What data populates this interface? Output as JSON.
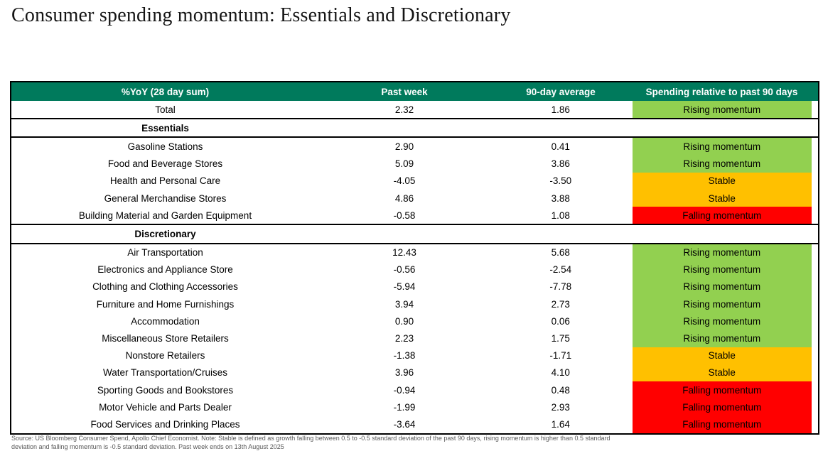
{
  "title": "Consumer spending momentum: Essentials and Discretionary",
  "colors": {
    "header_bg": "#007A5C",
    "rising": "#92D050",
    "stable": "#FFC000",
    "falling": "#FF0000"
  },
  "chart_data": {
    "type": "table",
    "title": "Consumer spending momentum: Essentials and Discretionary",
    "columns": [
      "%YoY (28 day sum)",
      "Past week",
      "90-day average",
      "Spending relative to past 90 days"
    ],
    "rows": [
      {
        "type": "data",
        "label": "Total",
        "past_week": "2.32",
        "avg_90": "1.86",
        "status": "Rising momentum",
        "momentum": "rising",
        "divider_below": true
      },
      {
        "type": "section",
        "label": "Essentials"
      },
      {
        "type": "data",
        "label": "Gasoline Stations",
        "past_week": "2.90",
        "avg_90": "0.41",
        "status": "Rising momentum",
        "momentum": "rising"
      },
      {
        "type": "data",
        "label": "Food and Beverage Stores",
        "past_week": "5.09",
        "avg_90": "3.86",
        "status": "Rising momentum",
        "momentum": "rising"
      },
      {
        "type": "data",
        "label": "Health and Personal Care",
        "past_week": "-4.05",
        "avg_90": "-3.50",
        "status": "Stable",
        "momentum": "stable"
      },
      {
        "type": "data",
        "label": "General Merchandise Stores",
        "past_week": "4.86",
        "avg_90": "3.88",
        "status": "Stable",
        "momentum": "stable"
      },
      {
        "type": "data",
        "label": "Building Material and Garden Equipment",
        "past_week": "-0.58",
        "avg_90": "1.08",
        "status": "Falling momentum",
        "momentum": "falling"
      },
      {
        "type": "section",
        "label": "Discretionary"
      },
      {
        "type": "data",
        "label": "Air Transportation",
        "past_week": "12.43",
        "avg_90": "5.68",
        "status": "Rising momentum",
        "momentum": "rising"
      },
      {
        "type": "data",
        "label": "Electronics and Appliance Store",
        "past_week": "-0.56",
        "avg_90": "-2.54",
        "status": "Rising momentum",
        "momentum": "rising"
      },
      {
        "type": "data",
        "label": "Clothing and Clothing Accessories",
        "past_week": "-5.94",
        "avg_90": "-7.78",
        "status": "Rising momentum",
        "momentum": "rising"
      },
      {
        "type": "data",
        "label": "Furniture and Home Furnishings",
        "past_week": "3.94",
        "avg_90": "2.73",
        "status": "Rising momentum",
        "momentum": "rising"
      },
      {
        "type": "data",
        "label": "Accommodation",
        "past_week": "0.90",
        "avg_90": "0.06",
        "status": "Rising momentum",
        "momentum": "rising"
      },
      {
        "type": "data",
        "label": "Miscellaneous Store Retailers",
        "past_week": "2.23",
        "avg_90": "1.75",
        "status": "Rising momentum",
        "momentum": "rising"
      },
      {
        "type": "data",
        "label": "Nonstore Retailers",
        "past_week": "-1.38",
        "avg_90": "-1.71",
        "status": "Stable",
        "momentum": "stable"
      },
      {
        "type": "data",
        "label": "Water Transportation/Cruises",
        "past_week": "3.96",
        "avg_90": "4.10",
        "status": "Stable",
        "momentum": "stable"
      },
      {
        "type": "data",
        "label": "Sporting Goods and Bookstores",
        "past_week": "-0.94",
        "avg_90": "0.48",
        "status": "Falling momentum",
        "momentum": "falling"
      },
      {
        "type": "data",
        "label": "Motor Vehicle and Parts Dealer",
        "past_week": "-1.99",
        "avg_90": "2.93",
        "status": "Falling momentum",
        "momentum": "falling"
      },
      {
        "type": "data",
        "label": "Food Services and Drinking Places",
        "past_week": "-3.64",
        "avg_90": "1.64",
        "status": "Falling momentum",
        "momentum": "falling"
      }
    ]
  },
  "footnote": {
    "line1": "Source: US Bloomberg Consumer Spend, Apollo Chief Economist. Note: Stable is defined as growth falling between 0.5 to -0.5 standard deviation of the past 90 days, rising momentum is higher than 0.5 standard",
    "line2": "deviation and falling momentum is -0.5 standard deviation. Past week ends on 13th August 2025"
  }
}
